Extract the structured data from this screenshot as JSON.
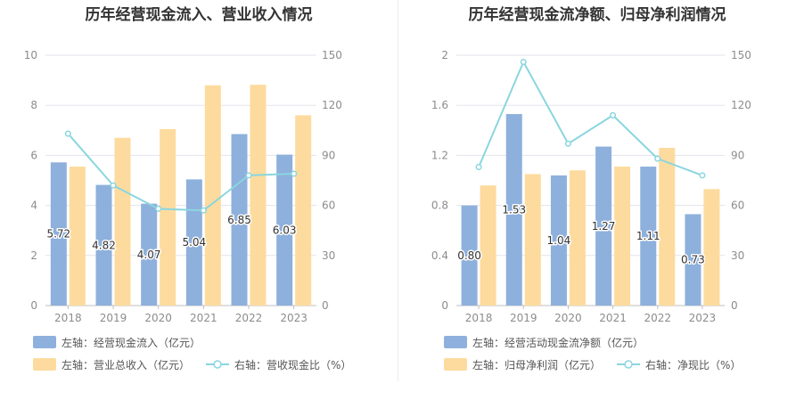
{
  "chart_data": [
    {
      "type": "bar",
      "title": "历年经营现金流入、营业收入情况",
      "categories": [
        "2018",
        "2019",
        "2020",
        "2021",
        "2022",
        "2023"
      ],
      "ylim_left": [
        0,
        10
      ],
      "yticks_left": [
        "0",
        "2",
        "4",
        "6",
        "8",
        "10"
      ],
      "ylim_right": [
        0,
        150
      ],
      "yticks_right": [
        "0",
        "30",
        "60",
        "90",
        "120",
        "150"
      ],
      "grid": true,
      "legend_position": "bottom-left",
      "series": [
        {
          "name": "左轴：经营现金流入（亿元）",
          "kind": "bar",
          "axis": "left",
          "color": "#8eb0dc",
          "values": [
            5.72,
            4.82,
            4.07,
            5.04,
            6.85,
            6.03
          ],
          "labels": [
            "5.72",
            "4.82",
            "4.07",
            "5.04",
            "6.85",
            "6.03"
          ]
        },
        {
          "name": "左轴：营业总收入（亿元）",
          "kind": "bar",
          "axis": "left",
          "color": "#fddb9e",
          "values": [
            5.55,
            6.7,
            7.05,
            8.8,
            8.82,
            7.6
          ]
        },
        {
          "name": "右轴：营收现金比（%）",
          "kind": "line",
          "axis": "right",
          "color": "#8ad6df",
          "values": [
            103,
            72,
            58,
            57,
            78,
            79
          ]
        }
      ]
    },
    {
      "type": "bar",
      "title": "历年经营现金流净额、归母净利润情况",
      "categories": [
        "2018",
        "2019",
        "2020",
        "2021",
        "2022",
        "2023"
      ],
      "ylim_left": [
        0,
        2
      ],
      "yticks_left": [
        "0",
        "0.4",
        "0.8",
        "1.2",
        "1.6",
        "2"
      ],
      "ylim_right": [
        0,
        150
      ],
      "yticks_right": [
        "0",
        "30",
        "60",
        "90",
        "120",
        "150"
      ],
      "grid": true,
      "legend_position": "bottom-left",
      "series": [
        {
          "name": "左轴：经营活动现金流净额（亿元）",
          "kind": "bar",
          "axis": "left",
          "color": "#8eb0dc",
          "values": [
            0.8,
            1.53,
            1.04,
            1.27,
            1.11,
            0.73
          ],
          "labels": [
            "0.80",
            "1.53",
            "1.04",
            "1.27",
            "1.11",
            "0.73"
          ]
        },
        {
          "name": "左轴：归母净利润（亿元）",
          "kind": "bar",
          "axis": "left",
          "color": "#fddb9e",
          "values": [
            0.96,
            1.05,
            1.08,
            1.11,
            1.26,
            0.93
          ]
        },
        {
          "name": "右轴：净现比（%）",
          "kind": "line",
          "axis": "right",
          "color": "#8ad6df",
          "values": [
            83,
            146,
            97,
            114,
            88,
            78
          ]
        }
      ]
    }
  ]
}
